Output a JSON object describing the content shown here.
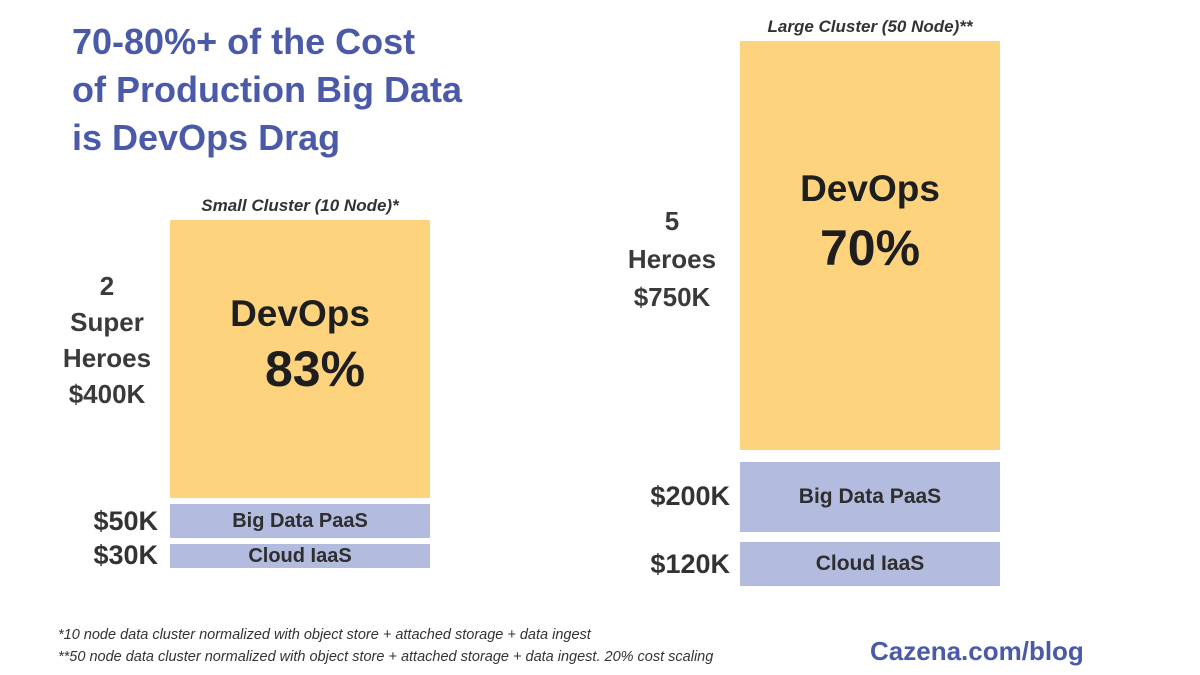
{
  "chart_data": {
    "type": "bar",
    "title": "70-80%+ of the Cost of Production Big Data is DevOps Drag",
    "title_lines": [
      "70-80%+ of the Cost",
      "of Production Big Data",
      "is DevOps Drag"
    ],
    "stacked": true,
    "unit": "$K",
    "colors": {
      "devops": "#fdd47d",
      "paas": "#b3bcdf",
      "title": "#4a5aa8"
    },
    "clusters": [
      {
        "name": "Small Cluster (10 Node)*",
        "devops_label_lines": [
          "2",
          "Super",
          "Heroes",
          "$400K"
        ],
        "segments": [
          {
            "name": "DevOps",
            "value": 400,
            "label": "",
            "percent_label": "83%"
          },
          {
            "name": "Big Data PaaS",
            "value": 50,
            "label": "$50K"
          },
          {
            "name": "Cloud IaaS",
            "value": 30,
            "label": "$30K"
          }
        ]
      },
      {
        "name": "Large Cluster (50 Node)**",
        "devops_label_lines": [
          "5",
          "Heroes",
          "$750K"
        ],
        "segments": [
          {
            "name": "DevOps",
            "value": 750,
            "label": "",
            "percent_label": "70%"
          },
          {
            "name": "Big Data PaaS",
            "value": 200,
            "label": "$200K"
          },
          {
            "name": "Cloud IaaS",
            "value": 120,
            "label": "$120K"
          }
        ]
      }
    ],
    "footnotes": [
      "*10 node data cluster normalized with object store + attached storage + data ingest",
      "**50 node data cluster normalized with object store + attached storage + data ingest. 20% cost scaling"
    ],
    "source": "Cazena.com/blog"
  }
}
